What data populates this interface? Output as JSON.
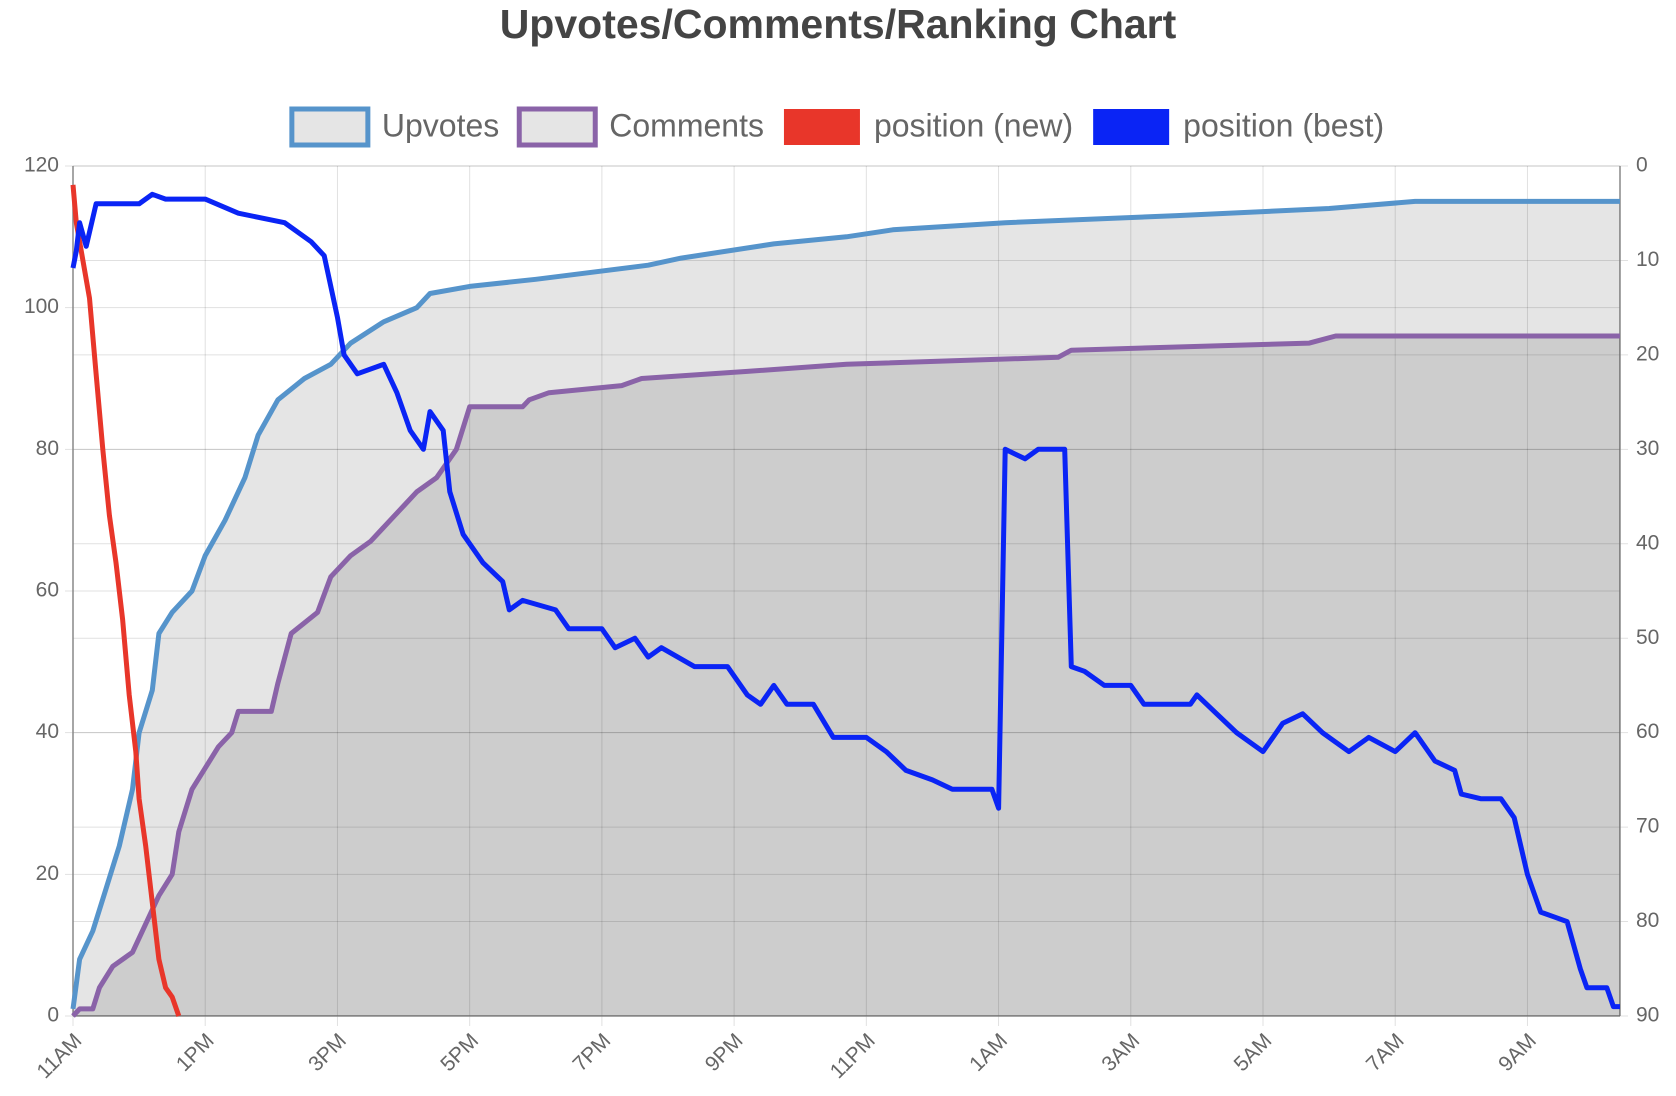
{
  "chart_data": {
    "type": "line",
    "title": "Upvotes/Comments/Ranking Chart",
    "xlim": [
      0,
      23.4
    ],
    "xticks": [
      {
        "value": 0,
        "label": "11AM"
      },
      {
        "value": 2,
        "label": "1PM"
      },
      {
        "value": 4,
        "label": "3PM"
      },
      {
        "value": 6,
        "label": "5PM"
      },
      {
        "value": 8,
        "label": "7PM"
      },
      {
        "value": 10,
        "label": "9PM"
      },
      {
        "value": 12,
        "label": "11PM"
      },
      {
        "value": 14,
        "label": "1AM"
      },
      {
        "value": 16,
        "label": "3AM"
      },
      {
        "value": 18,
        "label": "5AM"
      },
      {
        "value": 20,
        "label": "7AM"
      },
      {
        "value": 22,
        "label": "9AM"
      }
    ],
    "ylim": [
      0,
      120
    ],
    "yticks": [
      0,
      20,
      40,
      60,
      80,
      100,
      120
    ],
    "y2lim": [
      90,
      0
    ],
    "y2ticks": [
      0,
      10,
      20,
      30,
      40,
      50,
      60,
      70,
      80,
      90
    ],
    "grid": true,
    "series": [
      {
        "name": "Upvotes",
        "color": "#5694cb",
        "fill": "rgba(0,0,0,0.1)",
        "axis": "y",
        "x": [
          0,
          0.1,
          0.3,
          0.5,
          0.7,
          0.9,
          1.0,
          1.2,
          1.3,
          1.5,
          1.8,
          2.0,
          2.3,
          2.6,
          2.8,
          3.1,
          3.5,
          3.9,
          4.2,
          4.7,
          5.2,
          5.4,
          6.0,
          7.0,
          8.7,
          9.2,
          10.6,
          11.7,
          12.4,
          14.1,
          16.7,
          19.0,
          20.3,
          23.4
        ],
        "values": [
          1,
          8,
          12,
          18,
          24,
          32,
          40,
          46,
          54,
          57,
          60,
          65,
          70,
          76,
          82,
          87,
          90,
          92,
          95,
          98,
          100,
          102,
          103,
          104,
          106,
          107,
          109,
          110,
          111,
          112,
          113,
          114,
          115,
          115
        ]
      },
      {
        "name": "Comments",
        "color": "#8a63a8",
        "fill": "rgba(0,0,0,0.1)",
        "axis": "y",
        "x": [
          0,
          0.1,
          0.3,
          0.4,
          0.6,
          0.9,
          1.1,
          1.3,
          1.5,
          1.6,
          1.8,
          2.0,
          2.2,
          2.4,
          2.5,
          3.0,
          3.1,
          3.3,
          3.7,
          3.9,
          4.2,
          4.5,
          4.8,
          5.0,
          5.2,
          5.5,
          5.8,
          6.0,
          6.8,
          6.9,
          7.2,
          8.3,
          8.6,
          10.2,
          11.7,
          14.9,
          15.1,
          18.7,
          19.1,
          23.4
        ],
        "values": [
          0,
          1,
          1,
          4,
          7,
          9,
          13,
          17,
          20,
          26,
          32,
          35,
          38,
          40,
          43,
          43,
          47,
          54,
          57,
          62,
          65,
          67,
          70,
          72,
          74,
          76,
          80,
          86,
          86,
          87,
          88,
          89,
          90,
          91,
          92,
          93,
          94,
          95,
          96,
          96
        ]
      },
      {
        "name": "position (new)",
        "color": "#e8362a",
        "axis": "y2",
        "x": [
          0,
          0.05,
          0.15,
          0.25,
          0.35,
          0.45,
          0.55,
          0.65,
          0.75,
          0.85,
          0.95,
          1.0,
          1.1,
          1.2,
          1.3,
          1.4,
          1.5,
          1.6
        ],
        "values": [
          2,
          6,
          10,
          14,
          22,
          30,
          37,
          42,
          48,
          56,
          62,
          67,
          72,
          78,
          84,
          87,
          88,
          90
        ]
      },
      {
        "name": "position (best)",
        "color": "#0a24f5",
        "axis": "y2",
        "x": [
          0,
          0.05,
          0.1,
          0.2,
          0.35,
          0.5,
          1.0,
          1.2,
          1.4,
          2.0,
          2.5,
          3.2,
          3.6,
          3.8,
          4.0,
          4.1,
          4.3,
          4.7,
          4.9,
          5.1,
          5.3,
          5.4,
          5.6,
          5.7,
          5.9,
          6.2,
          6.5,
          6.6,
          6.8,
          7.3,
          7.5,
          8.0,
          8.2,
          8.5,
          8.7,
          8.9,
          9.4,
          9.9,
          10.2,
          10.4,
          10.6,
          10.8,
          11.2,
          11.5,
          12.0,
          12.3,
          12.6,
          13.0,
          13.3,
          13.6,
          13.9,
          14.0,
          14.1,
          14.4,
          14.6,
          15.0,
          15.1,
          15.3,
          15.6,
          16.0,
          16.2,
          16.9,
          17.0,
          17.3,
          17.6,
          18.0,
          18.3,
          18.6,
          18.9,
          19.3,
          19.6,
          20.0,
          20.3,
          20.6,
          20.9,
          21.0,
          21.3,
          21.6,
          21.8,
          22.0,
          22.2,
          22.4,
          22.6,
          22.8,
          22.9,
          23.1,
          23.2,
          23.3,
          23.4
        ],
        "values": [
          10.8,
          9,
          6,
          8.5,
          4,
          4,
          4,
          3,
          3.5,
          3.5,
          5,
          6,
          8,
          9.5,
          16,
          20,
          22,
          21,
          24,
          28,
          30,
          26,
          28,
          34.5,
          39,
          42,
          44,
          47,
          46,
          47,
          49,
          49,
          51,
          50,
          52,
          51,
          53,
          53,
          56,
          57,
          55,
          57,
          57,
          60.5,
          60.5,
          62,
          64,
          65,
          66,
          66,
          66,
          68,
          30,
          31,
          30,
          30,
          53,
          53.5,
          55,
          55,
          57,
          57,
          56,
          58,
          60,
          62,
          59,
          58,
          60,
          62,
          60.5,
          62,
          60,
          63,
          64,
          66.5,
          67,
          67,
          69,
          75,
          79,
          79.5,
          80,
          85,
          87,
          87,
          87,
          89,
          89
        ]
      }
    ]
  }
}
